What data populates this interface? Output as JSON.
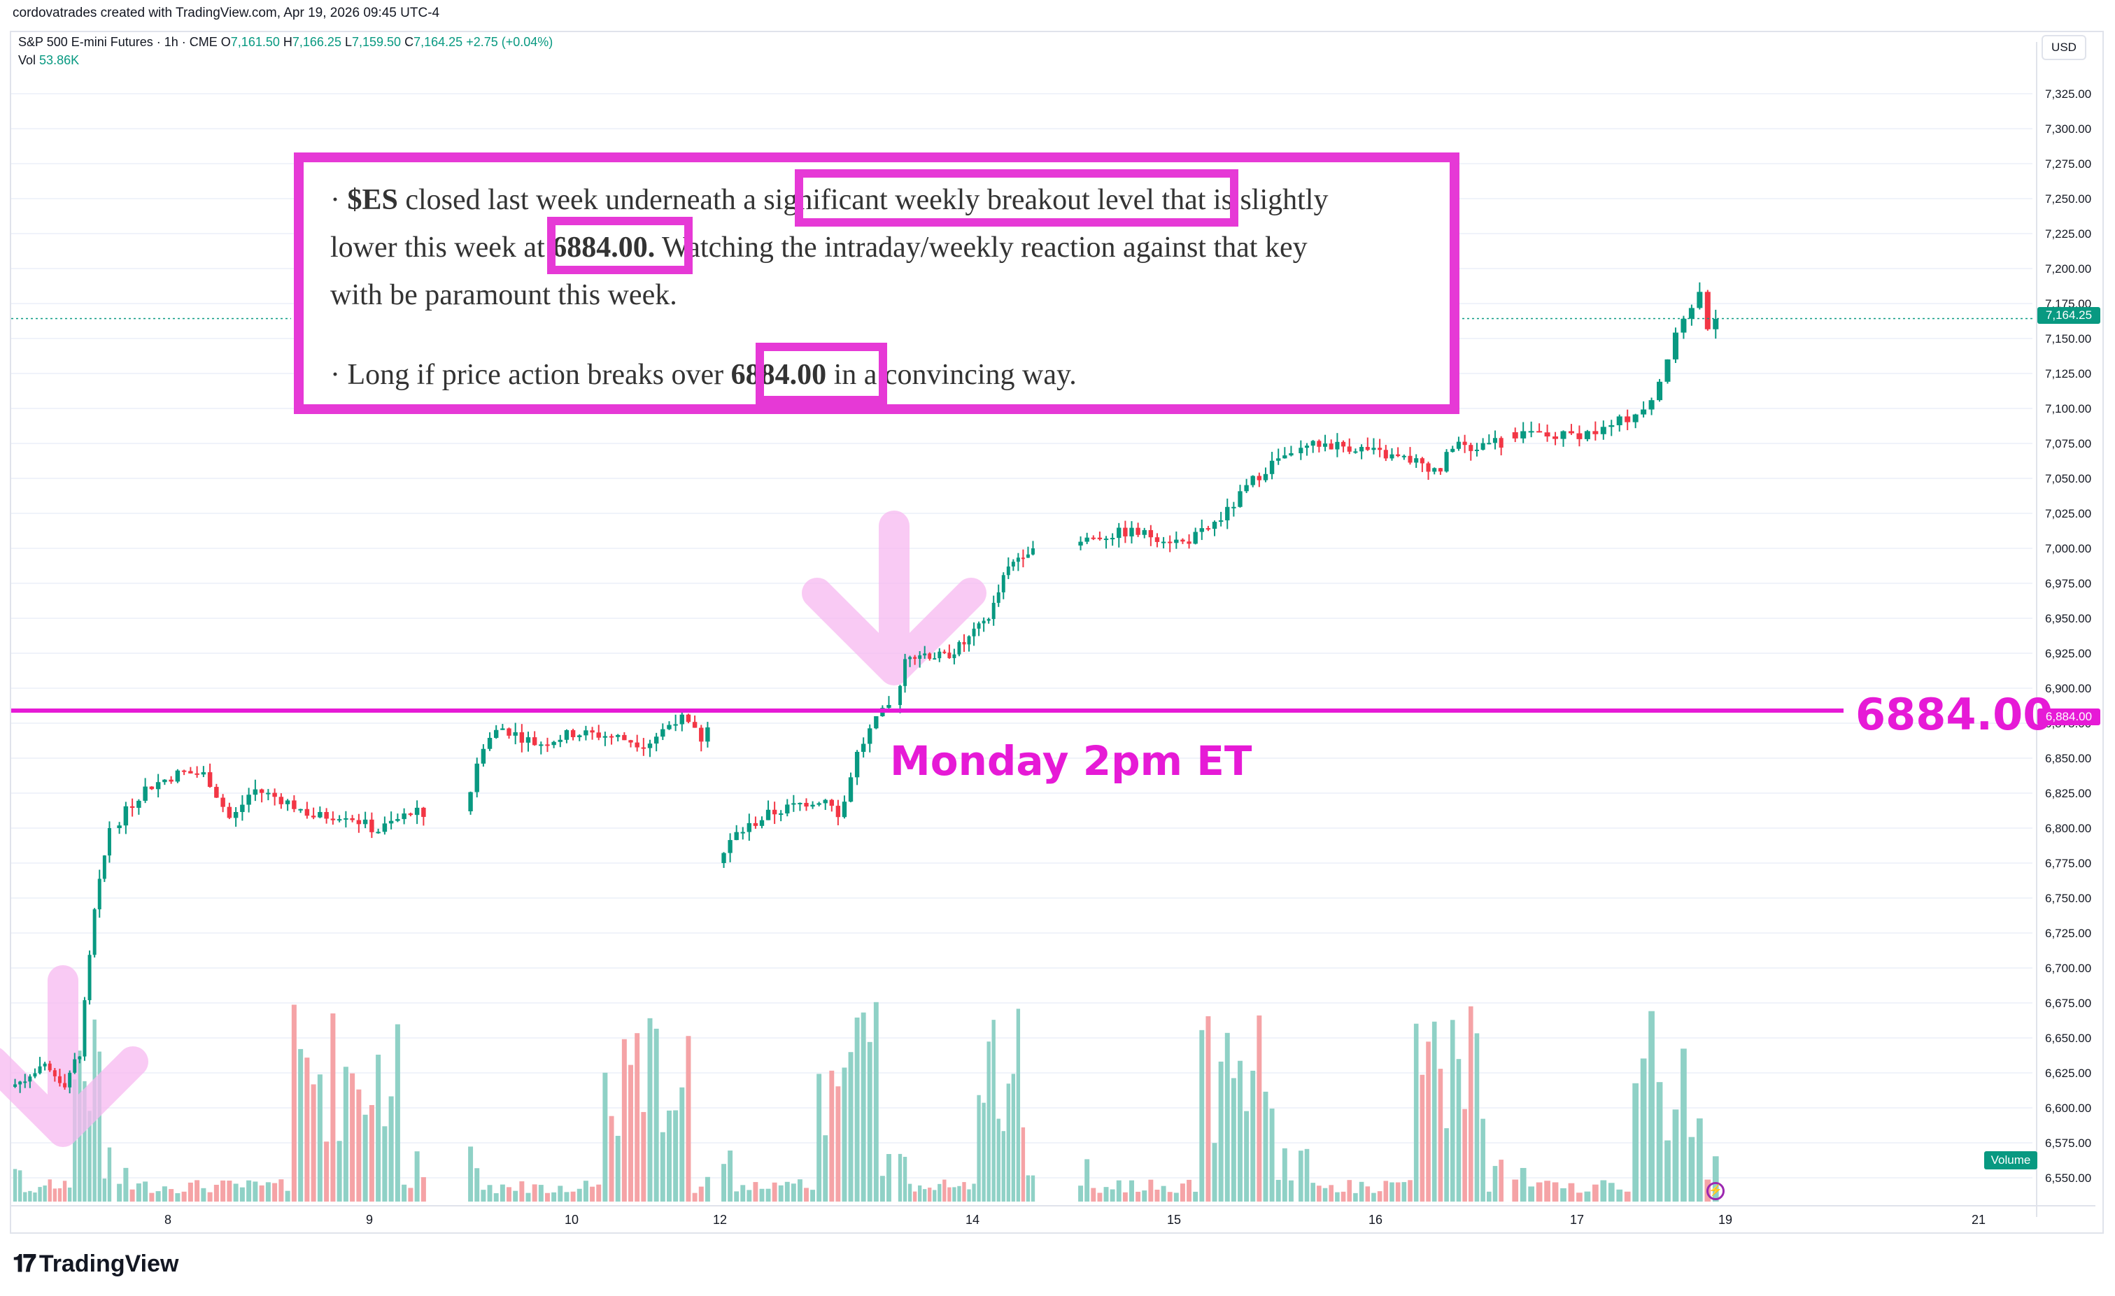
{
  "attribution": "cordovatrades created with TradingView.com, Apr 19, 2026 09:45 UTC-4",
  "legend": {
    "symbol": "S&P 500 E-mini Futures · 1h · CME",
    "o_label": "O",
    "o_value": "7,161.50",
    "h_label": "H",
    "h_value": "7,166.25",
    "l_label": "L",
    "l_value": "7,159.50",
    "c_label": "C",
    "c_value": "7,164.25",
    "change": "+2.75 (+0.04%)",
    "vol_label": "Vol",
    "vol_value": "53.86K"
  },
  "currency_button": "USD",
  "note": {
    "line1_prefix": "· ",
    "line1_ticker": "$ES",
    "line1_rest": " closed last week underneath a significant weekly breakout level that is slightly",
    "line2": "lower this week at ",
    "line2_level": "6884.00.",
    "line2_rest": " Watching the intraday/weekly reaction against that key",
    "line3": "with be paramount this week.",
    "line4_prefix": "· Long if price action breaks over ",
    "line4_level": "6884.00",
    "line4_rest": " in a convincing way."
  },
  "annotations": {
    "level_label": "6884.00",
    "event_label": "Monday 2pm ET"
  },
  "price_tags": {
    "last": "7,164.25",
    "level": "6,884.00"
  },
  "volume_tag": "Volume",
  "footer_logo": "TradingView",
  "colors": {
    "up": "#089981",
    "down": "#f23645",
    "vol_up": "#8fd1c6",
    "vol_down": "#f5a3a6",
    "highlight": "#e639d6",
    "level_line": "#e61ad6",
    "arrow": "#f7b8f0"
  },
  "chart_data": {
    "type": "candlestick",
    "symbol": "S&P 500 E-mini Futures",
    "interval": "1h",
    "y_axis_ticks": [
      "7,325.00",
      "7,300.00",
      "7,275.00",
      "7,250.00",
      "7,225.00",
      "7,200.00",
      "7,175.00",
      "7,150.00",
      "7,125.00",
      "7,100.00",
      "7,075.00",
      "7,050.00",
      "7,025.00",
      "7,000.00",
      "6,975.00",
      "6,950.00",
      "6,925.00",
      "6,900.00",
      "6,875.00",
      "6,850.00",
      "6,825.00",
      "6,800.00",
      "6,775.00",
      "6,750.00",
      "6,725.00",
      "6,700.00",
      "6,675.00",
      "6,650.00",
      "6,625.00",
      "6,600.00",
      "6,575.00",
      "6,550.00"
    ],
    "ylim": [
      6540,
      7340
    ],
    "x_axis_ticks": [
      "8",
      "9",
      "10",
      "12",
      "14",
      "15",
      "16",
      "17",
      "19",
      "21"
    ],
    "horizontal_level": 6884.0,
    "last_price": 7164.25,
    "segments": [
      {
        "name": "apr7",
        "start": 6615,
        "end": 6800,
        "bars": 20,
        "waypoints": [
          [
            0,
            6615
          ],
          [
            0.35,
            6628
          ],
          [
            0.55,
            6618
          ],
          [
            0.7,
            6640
          ],
          [
            0.85,
            6740
          ],
          [
            1,
            6800
          ]
        ]
      },
      {
        "name": "apr8",
        "start": 6800,
        "end": 6808,
        "bars": 48,
        "waypoints": [
          [
            0,
            6800
          ],
          [
            0.1,
            6828
          ],
          [
            0.22,
            6840
          ],
          [
            0.3,
            6838
          ],
          [
            0.38,
            6805
          ],
          [
            0.45,
            6828
          ],
          [
            0.55,
            6820
          ],
          [
            0.65,
            6808
          ],
          [
            0.75,
            6810
          ],
          [
            0.85,
            6798
          ],
          [
            0.95,
            6810
          ],
          [
            1,
            6812
          ]
        ]
      },
      {
        "name": "apr9",
        "start": 6812,
        "end": 6872,
        "bars": 38,
        "waypoints": [
          [
            0,
            6812
          ],
          [
            0.08,
            6860
          ],
          [
            0.15,
            6872
          ],
          [
            0.3,
            6860
          ],
          [
            0.45,
            6868
          ],
          [
            0.6,
            6866
          ],
          [
            0.75,
            6860
          ],
          [
            0.88,
            6880
          ],
          [
            1,
            6860
          ]
        ]
      },
      {
        "name": "apr12",
        "start": 6775,
        "end": 6888,
        "bars": 27,
        "waypoints": [
          [
            0,
            6775
          ],
          [
            0.1,
            6795
          ],
          [
            0.3,
            6810
          ],
          [
            0.5,
            6818
          ],
          [
            0.65,
            6822
          ],
          [
            0.72,
            6808
          ],
          [
            0.8,
            6850
          ],
          [
            0.9,
            6872
          ],
          [
            1,
            6888
          ]
        ]
      },
      {
        "name": "apr13",
        "start": 6888,
        "end": 7000,
        "bars": 28,
        "waypoints": [
          [
            0,
            6888
          ],
          [
            0.08,
            6925
          ],
          [
            0.2,
            6925
          ],
          [
            0.35,
            6922
          ],
          [
            0.5,
            6932
          ],
          [
            0.6,
            6942
          ],
          [
            0.7,
            6955
          ],
          [
            0.8,
            6982
          ],
          [
            0.9,
            6995
          ],
          [
            1,
            7002
          ]
        ]
      },
      {
        "name": "apr14",
        "start": 7002,
        "end": 7068,
        "bars": 34,
        "waypoints": [
          [
            0,
            7002
          ],
          [
            0.1,
            7008
          ],
          [
            0.25,
            7012
          ],
          [
            0.4,
            7008
          ],
          [
            0.5,
            7004
          ],
          [
            0.6,
            7012
          ],
          [
            0.7,
            7025
          ],
          [
            0.82,
            7048
          ],
          [
            0.92,
            7062
          ],
          [
            1,
            7068
          ]
        ]
      },
      {
        "name": "apr15",
        "start": 7068,
        "end": 7072,
        "bars": 34,
        "waypoints": [
          [
            0,
            7068
          ],
          [
            0.12,
            7075
          ],
          [
            0.3,
            7072
          ],
          [
            0.45,
            7066
          ],
          [
            0.6,
            7062
          ],
          [
            0.7,
            7055
          ],
          [
            0.78,
            7078
          ],
          [
            0.85,
            7068
          ],
          [
            0.95,
            7080
          ],
          [
            1,
            7083
          ]
        ]
      },
      {
        "name": "apr16",
        "start": 7083,
        "end": 7164,
        "bars": 26,
        "waypoints": [
          [
            0,
            7083
          ],
          [
            0.25,
            7080
          ],
          [
            0.45,
            7084
          ],
          [
            0.6,
            7095
          ],
          [
            0.7,
            7110
          ],
          [
            0.78,
            7140
          ],
          [
            0.86,
            7170
          ],
          [
            0.92,
            7182
          ],
          [
            0.96,
            7160
          ],
          [
            1,
            7164
          ]
        ]
      }
    ]
  }
}
